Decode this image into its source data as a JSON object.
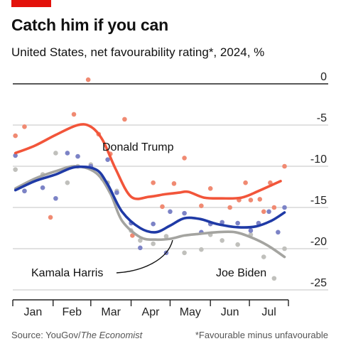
{
  "header": {
    "title": "Catch him if you can",
    "subtitle": "United States, net favourability rating*, 2024, %"
  },
  "footer": {
    "source_prefix": "Source: YouGov/",
    "source_italic": "The Economist",
    "note": "*Favourable minus unfavourable"
  },
  "colors": {
    "trump": "#f2553a",
    "trump_dots": "#f08a72",
    "harris": "#1f3aa6",
    "harris_dots": "#7c83c6",
    "biden": "#a4a4a0",
    "biden_dots": "#c0c0bc",
    "grid": "#cfcfcf",
    "axis": "#222222",
    "accent": "#e3120b"
  },
  "chart_data": {
    "type": "line",
    "title": "Catch him if you can",
    "subtitle": "United States, net favourability rating*, 2024, %",
    "x_axis": {
      "tick_labels": [
        "Jan",
        "Feb",
        "Mar",
        "Apr",
        "May",
        "Jun",
        "Jul"
      ],
      "range": [
        "2024-01-01",
        "2024-07-31"
      ]
    },
    "y_axis": {
      "tick_values": [
        0,
        -5,
        -10,
        -15,
        -20,
        -25
      ],
      "tick_labels": [
        "0",
        "-5",
        "-10",
        "-15",
        "-20",
        "-25"
      ],
      "range": [
        -25,
        0
      ],
      "position": "right"
    },
    "grid": true,
    "annotations": [
      {
        "text": "Donald Trump",
        "series": "Donald Trump"
      },
      {
        "text": "Kamala Harris",
        "series": "Kamala Harris"
      },
      {
        "text": "Joe Biden",
        "series": "Joe Biden"
      }
    ],
    "series": [
      {
        "name": "Donald Trump",
        "trend": [
          [
            "2024-01-03",
            -8.4
          ],
          [
            "2024-01-18",
            -7.5
          ],
          [
            "2024-02-03",
            -6.2
          ],
          [
            "2024-02-20",
            -5.0
          ],
          [
            "2024-03-01",
            -5.2
          ],
          [
            "2024-03-10",
            -6.8
          ],
          [
            "2024-03-20",
            -10.3
          ],
          [
            "2024-04-01",
            -13.7
          ],
          [
            "2024-04-15",
            -13.7
          ],
          [
            "2024-04-27",
            -13.4
          ],
          [
            "2024-05-08",
            -13.2
          ],
          [
            "2024-05-15",
            -13.1
          ],
          [
            "2024-05-27",
            -13.8
          ],
          [
            "2024-06-10",
            -13.9
          ],
          [
            "2024-06-25",
            -13.8
          ],
          [
            "2024-07-08",
            -13.0
          ],
          [
            "2024-07-25",
            -11.8
          ]
        ],
        "points": [
          [
            "2024-01-03",
            -6.3
          ],
          [
            "2024-01-10",
            -5.2
          ],
          [
            "2024-01-30",
            -16.2
          ],
          [
            "2024-02-17",
            -3.7
          ],
          [
            "2024-02-28",
            0.5
          ],
          [
            "2024-03-07",
            -6.1
          ],
          [
            "2024-03-16",
            -8.5
          ],
          [
            "2024-03-27",
            -4.3
          ],
          [
            "2024-04-02",
            -18.4
          ],
          [
            "2024-04-18",
            -12.0
          ],
          [
            "2024-04-25",
            -14.9
          ],
          [
            "2024-05-04",
            -12.1
          ],
          [
            "2024-05-12",
            -9.0
          ],
          [
            "2024-05-25",
            -14.8
          ],
          [
            "2024-06-01",
            -12.7
          ],
          [
            "2024-06-16",
            -15.0
          ],
          [
            "2024-06-23",
            -14.1
          ],
          [
            "2024-06-28",
            -12.0
          ],
          [
            "2024-07-02",
            -14.1
          ],
          [
            "2024-07-09",
            -14.0
          ],
          [
            "2024-07-12",
            -15.5
          ],
          [
            "2024-07-17",
            -12.0
          ],
          [
            "2024-07-20",
            -15.0
          ],
          [
            "2024-07-28",
            -10.0
          ]
        ]
      },
      {
        "name": "Kamala Harris",
        "trend": [
          [
            "2024-01-03",
            -12.9
          ],
          [
            "2024-01-18",
            -11.8
          ],
          [
            "2024-02-03",
            -11.0
          ],
          [
            "2024-02-18",
            -10.1
          ],
          [
            "2024-03-05",
            -10.4
          ],
          [
            "2024-03-14",
            -12.2
          ],
          [
            "2024-03-25",
            -15.5
          ],
          [
            "2024-04-08",
            -17.5
          ],
          [
            "2024-04-20",
            -18.0
          ],
          [
            "2024-05-01",
            -17.2
          ],
          [
            "2024-05-12",
            -16.3
          ],
          [
            "2024-05-24",
            -16.4
          ],
          [
            "2024-06-06",
            -17.0
          ],
          [
            "2024-06-22",
            -17.4
          ],
          [
            "2024-07-06",
            -17.3
          ],
          [
            "2024-07-18",
            -16.6
          ],
          [
            "2024-07-28",
            -15.6
          ]
        ],
        "points": [
          [
            "2024-01-03",
            -8.7
          ],
          [
            "2024-01-10",
            -13.0
          ],
          [
            "2024-01-24",
            -12.6
          ],
          [
            "2024-02-03",
            -13.9
          ],
          [
            "2024-02-12",
            -8.4
          ],
          [
            "2024-02-20",
            -8.8
          ],
          [
            "2024-03-01",
            -10.0
          ],
          [
            "2024-03-10",
            -11.5
          ],
          [
            "2024-03-14",
            -9.2
          ],
          [
            "2024-03-21",
            -13.2
          ],
          [
            "2024-04-01",
            -16.9
          ],
          [
            "2024-04-08",
            -19.9
          ],
          [
            "2024-04-18",
            -17.0
          ],
          [
            "2024-04-28",
            -20.5
          ],
          [
            "2024-05-01",
            -15.5
          ],
          [
            "2024-05-12",
            -15.7
          ],
          [
            "2024-05-25",
            -18.0
          ],
          [
            "2024-06-01",
            -17.0
          ],
          [
            "2024-06-10",
            -16.8
          ],
          [
            "2024-06-22",
            -16.9
          ],
          [
            "2024-07-02",
            -17.8
          ],
          [
            "2024-07-08",
            -16.9
          ],
          [
            "2024-07-16",
            -15.5
          ],
          [
            "2024-07-23",
            -18.0
          ],
          [
            "2024-07-28",
            -15.0
          ]
        ]
      },
      {
        "name": "Joe Biden",
        "trend": [
          [
            "2024-01-03",
            -12.7
          ],
          [
            "2024-01-18",
            -11.5
          ],
          [
            "2024-02-03",
            -10.6
          ],
          [
            "2024-02-18",
            -10.0
          ],
          [
            "2024-03-05",
            -10.8
          ],
          [
            "2024-03-16",
            -13.3
          ],
          [
            "2024-03-25",
            -16.6
          ],
          [
            "2024-04-08",
            -18.6
          ],
          [
            "2024-04-20",
            -18.9
          ],
          [
            "2024-05-01",
            -18.8
          ],
          [
            "2024-05-12",
            -18.4
          ],
          [
            "2024-05-24",
            -18.2
          ],
          [
            "2024-06-06",
            -18.0
          ],
          [
            "2024-06-20",
            -18.0
          ],
          [
            "2024-07-02",
            -18.6
          ],
          [
            "2024-07-15",
            -19.6
          ],
          [
            "2024-07-28",
            -21.0
          ]
        ],
        "points": [
          [
            "2024-01-03",
            -10.4
          ],
          [
            "2024-01-10",
            -13.0
          ],
          [
            "2024-01-24",
            -11.0
          ],
          [
            "2024-02-03",
            -8.4
          ],
          [
            "2024-02-12",
            -12.0
          ],
          [
            "2024-02-20",
            -10.0
          ],
          [
            "2024-03-01",
            -9.8
          ],
          [
            "2024-03-14",
            -12.0
          ],
          [
            "2024-03-21",
            -13.0
          ],
          [
            "2024-04-01",
            -17.8
          ],
          [
            "2024-04-08",
            -19.0
          ],
          [
            "2024-04-18",
            -19.4
          ],
          [
            "2024-04-28",
            -18.5
          ],
          [
            "2024-05-12",
            -20.5
          ],
          [
            "2024-05-25",
            -20.1
          ],
          [
            "2024-06-01",
            -18.3
          ],
          [
            "2024-06-10",
            -19.0
          ],
          [
            "2024-06-22",
            -19.5
          ],
          [
            "2024-07-02",
            -18.3
          ],
          [
            "2024-07-12",
            -21.0
          ],
          [
            "2024-07-20",
            -23.6
          ],
          [
            "2024-07-28",
            -20.0
          ]
        ]
      }
    ]
  }
}
